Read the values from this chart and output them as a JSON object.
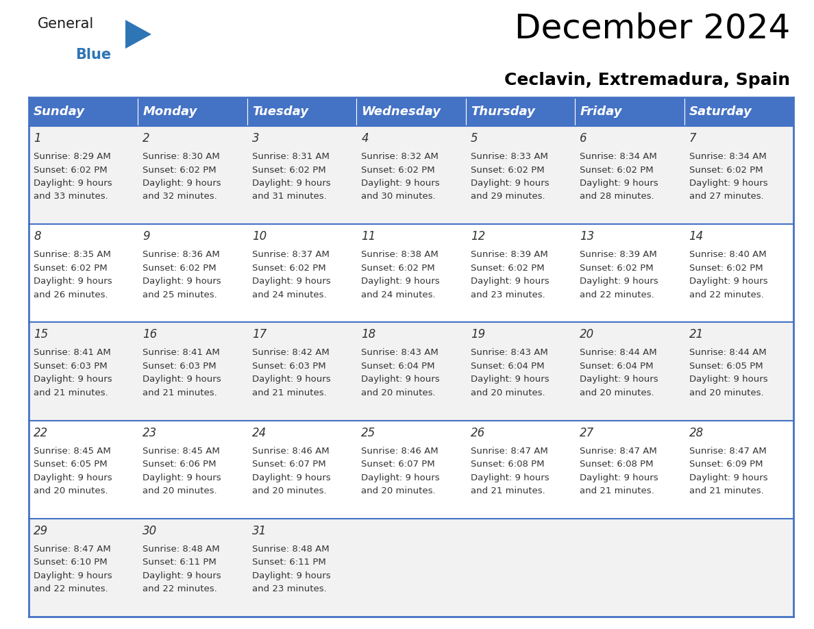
{
  "title": "December 2024",
  "subtitle": "Ceclavin, Extremadura, Spain",
  "header_bg": "#4472C4",
  "header_text_color": "#FFFFFF",
  "days_of_week": [
    "Sunday",
    "Monday",
    "Tuesday",
    "Wednesday",
    "Thursday",
    "Friday",
    "Saturday"
  ],
  "cell_bg_even": "#F2F2F2",
  "cell_bg_odd": "#FFFFFF",
  "grid_line_color": "#4472C4",
  "text_color": "#333333",
  "calendar_data": [
    [
      {
        "day": 1,
        "sunrise": "8:29 AM",
        "sunset": "6:02 PM",
        "daylight": "9 hours and 33 minutes."
      },
      {
        "day": 2,
        "sunrise": "8:30 AM",
        "sunset": "6:02 PM",
        "daylight": "9 hours and 32 minutes."
      },
      {
        "day": 3,
        "sunrise": "8:31 AM",
        "sunset": "6:02 PM",
        "daylight": "9 hours and 31 minutes."
      },
      {
        "day": 4,
        "sunrise": "8:32 AM",
        "sunset": "6:02 PM",
        "daylight": "9 hours and 30 minutes."
      },
      {
        "day": 5,
        "sunrise": "8:33 AM",
        "sunset": "6:02 PM",
        "daylight": "9 hours and 29 minutes."
      },
      {
        "day": 6,
        "sunrise": "8:34 AM",
        "sunset": "6:02 PM",
        "daylight": "9 hours and 28 minutes."
      },
      {
        "day": 7,
        "sunrise": "8:34 AM",
        "sunset": "6:02 PM",
        "daylight": "9 hours and 27 minutes."
      }
    ],
    [
      {
        "day": 8,
        "sunrise": "8:35 AM",
        "sunset": "6:02 PM",
        "daylight": "9 hours and 26 minutes."
      },
      {
        "day": 9,
        "sunrise": "8:36 AM",
        "sunset": "6:02 PM",
        "daylight": "9 hours and 25 minutes."
      },
      {
        "day": 10,
        "sunrise": "8:37 AM",
        "sunset": "6:02 PM",
        "daylight": "9 hours and 24 minutes."
      },
      {
        "day": 11,
        "sunrise": "8:38 AM",
        "sunset": "6:02 PM",
        "daylight": "9 hours and 24 minutes."
      },
      {
        "day": 12,
        "sunrise": "8:39 AM",
        "sunset": "6:02 PM",
        "daylight": "9 hours and 23 minutes."
      },
      {
        "day": 13,
        "sunrise": "8:39 AM",
        "sunset": "6:02 PM",
        "daylight": "9 hours and 22 minutes."
      },
      {
        "day": 14,
        "sunrise": "8:40 AM",
        "sunset": "6:02 PM",
        "daylight": "9 hours and 22 minutes."
      }
    ],
    [
      {
        "day": 15,
        "sunrise": "8:41 AM",
        "sunset": "6:03 PM",
        "daylight": "9 hours and 21 minutes."
      },
      {
        "day": 16,
        "sunrise": "8:41 AM",
        "sunset": "6:03 PM",
        "daylight": "9 hours and 21 minutes."
      },
      {
        "day": 17,
        "sunrise": "8:42 AM",
        "sunset": "6:03 PM",
        "daylight": "9 hours and 21 minutes."
      },
      {
        "day": 18,
        "sunrise": "8:43 AM",
        "sunset": "6:04 PM",
        "daylight": "9 hours and 20 minutes."
      },
      {
        "day": 19,
        "sunrise": "8:43 AM",
        "sunset": "6:04 PM",
        "daylight": "9 hours and 20 minutes."
      },
      {
        "day": 20,
        "sunrise": "8:44 AM",
        "sunset": "6:04 PM",
        "daylight": "9 hours and 20 minutes."
      },
      {
        "day": 21,
        "sunrise": "8:44 AM",
        "sunset": "6:05 PM",
        "daylight": "9 hours and 20 minutes."
      }
    ],
    [
      {
        "day": 22,
        "sunrise": "8:45 AM",
        "sunset": "6:05 PM",
        "daylight": "9 hours and 20 minutes."
      },
      {
        "day": 23,
        "sunrise": "8:45 AM",
        "sunset": "6:06 PM",
        "daylight": "9 hours and 20 minutes."
      },
      {
        "day": 24,
        "sunrise": "8:46 AM",
        "sunset": "6:07 PM",
        "daylight": "9 hours and 20 minutes."
      },
      {
        "day": 25,
        "sunrise": "8:46 AM",
        "sunset": "6:07 PM",
        "daylight": "9 hours and 20 minutes."
      },
      {
        "day": 26,
        "sunrise": "8:47 AM",
        "sunset": "6:08 PM",
        "daylight": "9 hours and 21 minutes."
      },
      {
        "day": 27,
        "sunrise": "8:47 AM",
        "sunset": "6:08 PM",
        "daylight": "9 hours and 21 minutes."
      },
      {
        "day": 28,
        "sunrise": "8:47 AM",
        "sunset": "6:09 PM",
        "daylight": "9 hours and 21 minutes."
      }
    ],
    [
      {
        "day": 29,
        "sunrise": "8:47 AM",
        "sunset": "6:10 PM",
        "daylight": "9 hours and 22 minutes."
      },
      {
        "day": 30,
        "sunrise": "8:48 AM",
        "sunset": "6:11 PM",
        "daylight": "9 hours and 22 minutes."
      },
      {
        "day": 31,
        "sunrise": "8:48 AM",
        "sunset": "6:11 PM",
        "daylight": "9 hours and 23 minutes."
      },
      null,
      null,
      null,
      null
    ]
  ],
  "logo_triangle_color": "#2E75B6",
  "title_fontsize": 36,
  "subtitle_fontsize": 18,
  "header_fontsize": 13,
  "day_num_fontsize": 12,
  "cell_fontsize": 9.5
}
